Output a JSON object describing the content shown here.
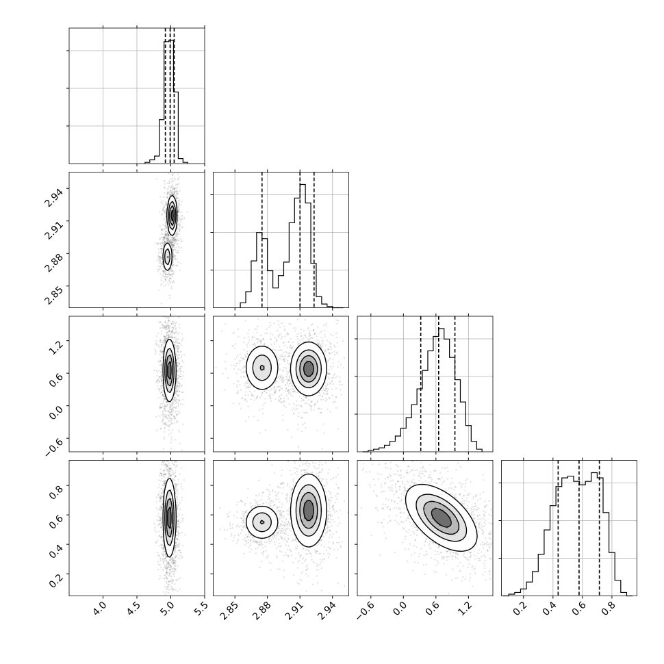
{
  "chart_data": {
    "type": "corner",
    "title": "",
    "grid": true,
    "parameters": [
      {
        "name": "p0",
        "xlabel": "",
        "range": [
          3.5,
          5.5
        ],
        "ticks": [
          4.0,
          4.5,
          5.0,
          5.5
        ],
        "tick_labels": [
          "4.0",
          "4.5",
          "5.0",
          "5.5"
        ],
        "quantiles": [
          4.92,
          4.99,
          5.05
        ],
        "histogram": {
          "bin_edges": [
            4.62,
            4.69,
            4.76,
            4.83,
            4.9,
            4.97,
            5.04,
            5.11,
            5.18,
            5.25
          ],
          "counts": [
            0.01,
            0.03,
            0.06,
            0.35,
            0.97,
            0.98,
            0.57,
            0.04,
            0.01
          ]
        }
      },
      {
        "name": "p1",
        "xlabel": "",
        "range": [
          2.83,
          2.955
        ],
        "ticks": [
          2.85,
          2.88,
          2.91,
          2.94
        ],
        "tick_labels": [
          "2.85",
          "2.88",
          "2.91",
          "2.94"
        ],
        "quantiles": [
          2.875,
          2.91,
          2.923
        ],
        "histogram": {
          "bin_edges": [
            2.855,
            2.86,
            2.865,
            2.87,
            2.875,
            2.88,
            2.885,
            2.89,
            2.895,
            2.9,
            2.905,
            2.91,
            2.915,
            2.92,
            2.925,
            2.93,
            2.935,
            2.94,
            2.945,
            2.95
          ],
          "counts": [
            0.04,
            0.13,
            0.38,
            0.61,
            0.56,
            0.3,
            0.16,
            0.26,
            0.37,
            0.69,
            0.89,
            1.0,
            0.85,
            0.36,
            0.09,
            0.03,
            0.01,
            0.0,
            0.0
          ]
        }
      },
      {
        "name": "p2",
        "xlabel": "",
        "range": [
          -0.85,
          1.65
        ],
        "ticks": [
          -0.6,
          0.0,
          0.6,
          1.2
        ],
        "tick_labels": [
          "−0.6",
          "0.0",
          "0.6",
          "1.2"
        ],
        "quantiles": [
          0.32,
          0.65,
          0.95
        ],
        "histogram": {
          "bin_edges": [
            -0.75,
            -0.65,
            -0.55,
            -0.45,
            -0.35,
            -0.25,
            -0.15,
            -0.05,
            0.05,
            0.15,
            0.25,
            0.35,
            0.45,
            0.55,
            0.65,
            0.75,
            0.85,
            0.95,
            1.05,
            1.15,
            1.25,
            1.35,
            1.45
          ],
          "counts": [
            0.0,
            0.01,
            0.02,
            0.03,
            0.05,
            0.08,
            0.12,
            0.18,
            0.26,
            0.36,
            0.48,
            0.62,
            0.77,
            0.88,
            0.94,
            0.86,
            0.72,
            0.55,
            0.38,
            0.2,
            0.08,
            0.02
          ]
        }
      },
      {
        "name": "p3",
        "xlabel": "",
        "range": [
          0.05,
          0.97
        ],
        "ticks": [
          0.2,
          0.4,
          0.6,
          0.8
        ],
        "tick_labels": [
          "0.2",
          "0.4",
          "0.6",
          "0.8"
        ],
        "quantiles": [
          0.435,
          0.577,
          0.715
        ],
        "histogram": {
          "bin_edges": [
            0.06,
            0.1,
            0.14,
            0.18,
            0.22,
            0.26,
            0.3,
            0.34,
            0.38,
            0.42,
            0.46,
            0.5,
            0.54,
            0.58,
            0.62,
            0.66,
            0.7,
            0.74,
            0.78,
            0.82,
            0.86,
            0.9,
            0.94
          ],
          "counts": [
            0.0,
            0.01,
            0.02,
            0.04,
            0.08,
            0.14,
            0.24,
            0.38,
            0.52,
            0.63,
            0.68,
            0.69,
            0.66,
            0.64,
            0.66,
            0.71,
            0.68,
            0.48,
            0.25,
            0.09,
            0.02,
            0.0
          ]
        }
      }
    ],
    "left_axis_ticks": {
      "row1": {
        "ticks": [
          2.85,
          2.88,
          2.91,
          2.94
        ],
        "tick_labels": [
          "2.85",
          "2.88",
          "2.91",
          "2.94"
        ]
      },
      "row2": {
        "ticks": [
          -0.6,
          0.0,
          0.6,
          1.2
        ],
        "tick_labels": [
          "−0.6",
          "0.0",
          "0.6",
          "1.2"
        ]
      },
      "row3": {
        "ticks": [
          0.2,
          0.4,
          0.6,
          0.8
        ],
        "tick_labels": [
          "0.2",
          "0.4",
          "0.6",
          "0.8"
        ]
      }
    },
    "joint_modes": [
      {
        "x": 0,
        "y": 1,
        "components": [
          {
            "mx": 5.02,
            "my": 2.915,
            "sx": 0.035,
            "sy": 0.009,
            "w": 0.62
          },
          {
            "mx": 4.95,
            "my": 2.877,
            "sx": 0.035,
            "sy": 0.007,
            "w": 0.38
          }
        ]
      },
      {
        "x": 0,
        "y": 2,
        "components": [
          {
            "mx": 4.98,
            "my": 0.65,
            "sx": 0.045,
            "sy": 0.28,
            "w": 1.0
          }
        ]
      },
      {
        "x": 1,
        "y": 2,
        "components": [
          {
            "mx": 2.875,
            "my": 0.7,
            "sx": 0.008,
            "sy": 0.22,
            "w": 0.38
          },
          {
            "mx": 2.918,
            "my": 0.68,
            "sx": 0.008,
            "sy": 0.24,
            "w": 0.62
          }
        ]
      },
      {
        "x": 0,
        "y": 3,
        "components": [
          {
            "mx": 4.98,
            "my": 0.58,
            "sx": 0.045,
            "sy": 0.13,
            "w": 1.0
          }
        ]
      },
      {
        "x": 1,
        "y": 3,
        "components": [
          {
            "mx": 2.875,
            "my": 0.55,
            "sx": 0.008,
            "sy": 0.06,
            "w": 0.38
          },
          {
            "mx": 2.918,
            "my": 0.63,
            "sx": 0.008,
            "sy": 0.12,
            "w": 0.62
          }
        ]
      },
      {
        "x": 2,
        "y": 3,
        "components": [
          {
            "mx": 0.7,
            "my": 0.58,
            "sx": 0.32,
            "sy": 0.11,
            "w": 1.0,
            "rho": -0.55
          }
        ]
      }
    ]
  }
}
